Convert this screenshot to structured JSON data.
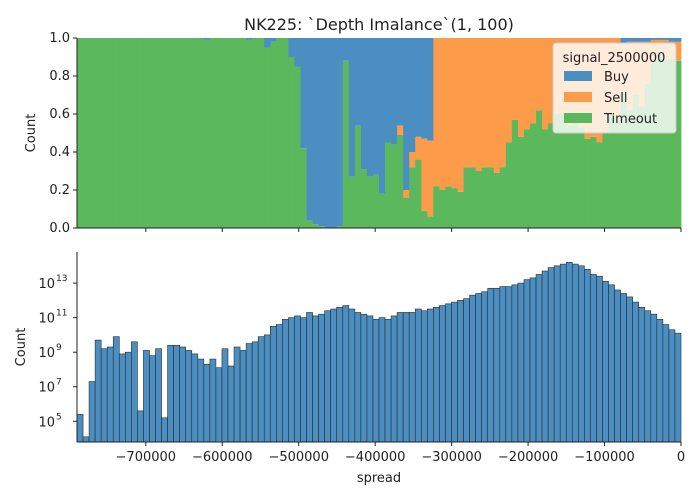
{
  "title": "NK225: `Depth Imalance`(1, 100)",
  "colors": {
    "buy": "#4b8fc2",
    "sell": "#fc9b49",
    "timeout": "#5bb85d",
    "hist": "#4b8fc2",
    "edge": "#222222"
  },
  "chart_data": [
    {
      "type": "area",
      "name": "top-fill-panel",
      "title": "NK225: `Depth Imalance`(1, 100)",
      "xlabel": "",
      "ylabel": "Count",
      "xlim": [
        -790000,
        0
      ],
      "ylim": [
        0,
        1
      ],
      "yticks": [
        0.0,
        0.2,
        0.4,
        0.6,
        0.8,
        1.0
      ],
      "ytick_labels": [
        "0.0",
        "0.2",
        "0.4",
        "0.6",
        "0.8",
        "1.0"
      ],
      "legend": {
        "title": "signal_2500000",
        "placement": "top-right",
        "entries": [
          "Buy",
          "Sell",
          "Timeout"
        ]
      },
      "bin_start": -790000,
      "bin_width": 7900,
      "buy": [
        0,
        0,
        0,
        0,
        0,
        0,
        0,
        0,
        0,
        0,
        0,
        0,
        0,
        0,
        0,
        0,
        0,
        0,
        0,
        0,
        0,
        0.01,
        0,
        0,
        0,
        0,
        0,
        0,
        0.01,
        0,
        0,
        0.05,
        0.02,
        0,
        0,
        0.1,
        0.15,
        0.58,
        0.96,
        0.98,
        0.99,
        1.0,
        1.0,
        0.99,
        0.12,
        0.73,
        0.46,
        0.69,
        0.73,
        0.72,
        0.82,
        0.55,
        0.56,
        0.46,
        0.8,
        0.6,
        0.52,
        0.53,
        0.54,
        0,
        0,
        0,
        0,
        0,
        0,
        0,
        0,
        0,
        0,
        0,
        0,
        0,
        0,
        0,
        0,
        0,
        0,
        0,
        0,
        0,
        0,
        0,
        0,
        0,
        0,
        0,
        0,
        0,
        0,
        0,
        0.03,
        0.02,
        0.02,
        0.02,
        0.02,
        0.01,
        0.01,
        0.01,
        0.02,
        0.02,
        0.02,
        0.01,
        0.01,
        0.01,
        0.01,
        0.01,
        0,
        0,
        0,
        0,
        0,
        0,
        0,
        0,
        0,
        0,
        0,
        0,
        0,
        0,
        0,
        0,
        0,
        0,
        0,
        0,
        0,
        0,
        0,
        0,
        0,
        0,
        0,
        0,
        0,
        0,
        0,
        0,
        0,
        0,
        0,
        0,
        0,
        0,
        0,
        0,
        0,
        0,
        0,
        0,
        0,
        0,
        0,
        0,
        0,
        0,
        0,
        0,
        0
      ],
      "sell": [
        0,
        0,
        0,
        0,
        0,
        0,
        0,
        0,
        0,
        0,
        0,
        0,
        0,
        0,
        0,
        0,
        0,
        0,
        0,
        0,
        0,
        0,
        0,
        0,
        0,
        0,
        0,
        0,
        0,
        0,
        0,
        0,
        0,
        0,
        0,
        0,
        0,
        0,
        0,
        0,
        0,
        0,
        0,
        0,
        0,
        0,
        0,
        0,
        0,
        0,
        0,
        0,
        0,
        0.05,
        0.04,
        0.08,
        0.12,
        0.38,
        0.4,
        0.78,
        0.8,
        0.78,
        0.79,
        0.81,
        0.68,
        0.68,
        0.7,
        0.68,
        0.68,
        0.71,
        0.68,
        0.55,
        0.43,
        0.52,
        0.48,
        0.45,
        0.38,
        0.48,
        0.45,
        0.4,
        0.4,
        0.46,
        0.41,
        0.47,
        0.53,
        0.52,
        0.55,
        0.5,
        0.4,
        0.42,
        0.26,
        0.36,
        0.28,
        0.34,
        0.22,
        0.11,
        0.07,
        0.1,
        0.09,
        0.1,
        0.12,
        0.08,
        0.08,
        0.04,
        0.07,
        0.04,
        0.02,
        0.02,
        0.03,
        0.01,
        0.02,
        0.01,
        0.02,
        0.02,
        0.02,
        0.01,
        0.01,
        0.0,
        0.0,
        0.01,
        0.0,
        0.02,
        0.0,
        0.0,
        0.0,
        0.0,
        0.0,
        0.0,
        0.0,
        0.0,
        0.0,
        0.0,
        0.0,
        0.0,
        0.0,
        0.0,
        0.0,
        0.0,
        0.0,
        0.0,
        0.0,
        0.0,
        0.0,
        0.0,
        0.0,
        0.0,
        0.0,
        0.0,
        0.0,
        0.0,
        0.0,
        0.0,
        0.0,
        0.0,
        0.0,
        0.0,
        0.0,
        0.0,
        0.0,
        0.0,
        0.0,
        0.0,
        0.0
      ],
      "note_sell_visible_range": "Sell dominates roughly -555000 to -300000"
    },
    {
      "type": "bar",
      "name": "bottom-histogram",
      "title": "",
      "xlabel": "spread",
      "ylabel": "Count",
      "xlim": [
        -790000,
        0
      ],
      "yscale": "log",
      "ylim_log10": [
        3.8,
        14.8
      ],
      "yticks_log10": [
        5,
        7,
        9,
        11,
        13
      ],
      "ytick_labels": [
        "10^5",
        "10^7",
        "10^9",
        "10^11",
        "10^13"
      ],
      "xticks": [
        -700000,
        -600000,
        -500000,
        -400000,
        -300000,
        -200000,
        -100000,
        0
      ],
      "xtick_labels": [
        "−700000",
        "−600000",
        "−500000",
        "−400000",
        "−300000",
        "−200000",
        "−100000",
        "0"
      ],
      "bin_start": -790000,
      "bin_width": 7900,
      "log10_counts": [
        5.4,
        4.1,
        7.3,
        9.7,
        9.2,
        9.3,
        9.9,
        8.9,
        9.0,
        9.6,
        5.6,
        9.1,
        8.8,
        9.2,
        5.2,
        9.4,
        9.4,
        9.3,
        9.1,
        8.9,
        8.6,
        8.3,
        8.6,
        8.1,
        9.2,
        8.2,
        9.3,
        9.1,
        9.5,
        9.6,
        9.9,
        10.0,
        10.5,
        10.6,
        10.9,
        11.0,
        11.1,
        11.0,
        11.3,
        11.1,
        11.2,
        11.4,
        11.5,
        11.6,
        11.7,
        11.5,
        11.3,
        11.2,
        11.1,
        10.9,
        11.0,
        10.9,
        11.1,
        11.3,
        11.3,
        11.3,
        11.5,
        11.4,
        11.5,
        11.6,
        11.7,
        11.8,
        11.9,
        12.0,
        12.1,
        12.3,
        12.4,
        12.5,
        12.7,
        12.7,
        12.8,
        12.8,
        12.9,
        13.0,
        13.2,
        13.3,
        13.5,
        13.7,
        13.9,
        14.0,
        14.1,
        14.2,
        14.1,
        14.0,
        13.8,
        13.5,
        13.4,
        13.1,
        12.9,
        12.6,
        12.4,
        12.2,
        11.9,
        11.6,
        11.4,
        11.2,
        10.9,
        10.6,
        10.3,
        10.1
      ]
    }
  ]
}
